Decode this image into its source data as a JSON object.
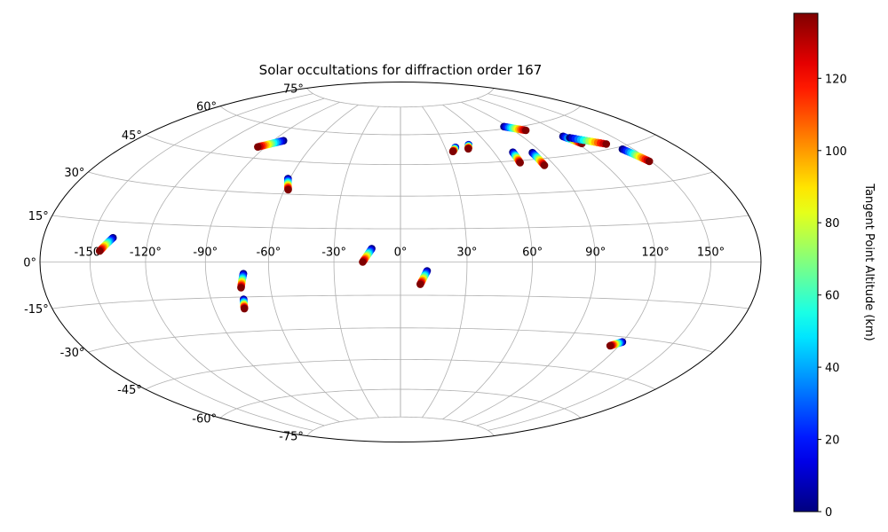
{
  "chart_data": {
    "type": "scatter",
    "projection": "hammer",
    "title": "Solar occultations for diffraction order 167",
    "grid": true,
    "lon_ticks": [
      -150,
      -120,
      -90,
      -60,
      -30,
      0,
      30,
      60,
      90,
      120,
      150
    ],
    "lon_tick_labels": [
      "-150°",
      "-120°",
      "-90°",
      "-60°",
      "-30°",
      "0°",
      "30°",
      "60°",
      "90°",
      "120°",
      "150°"
    ],
    "lat_ticks": [
      75,
      60,
      45,
      30,
      15,
      0,
      -15,
      -30,
      -45,
      -60,
      -75
    ],
    "lat_tick_labels": [
      "75°",
      "60°",
      "45°",
      "30°",
      "15°",
      "0°",
      "-15°",
      "-30°",
      "-45°",
      "-60°",
      "-75°"
    ],
    "colorbar": {
      "label": "Tangent Point Altitude (km)",
      "min": 0,
      "max": 138,
      "ticks": [
        0,
        20,
        40,
        60,
        80,
        100,
        120
      ],
      "tick_labels": [
        "0",
        "20",
        "40",
        "60",
        "80",
        "100",
        "120"
      ],
      "colormap": "jet"
    },
    "series": [
      {
        "lon_start": -139,
        "lat_start": 9,
        "lon_end": -145,
        "lat_end": 4,
        "alt_start": 0,
        "alt_end": 138
      },
      {
        "lon_start": -83,
        "lat_start": 54,
        "lon_end": -95,
        "lat_end": 50,
        "alt_start": 0,
        "alt_end": 138
      },
      {
        "lon_start": -61,
        "lat_start": 37,
        "lon_end": -58,
        "lat_end": 32,
        "alt_start": 0,
        "alt_end": 138
      },
      {
        "lon_start": -72,
        "lat_start": -5,
        "lon_end": -74,
        "lat_end": -11,
        "alt_start": 0,
        "alt_end": 138
      },
      {
        "lon_start": -74,
        "lat_start": -16,
        "lon_end": -75,
        "lat_end": -20,
        "alt_start": 0,
        "alt_end": 138
      },
      {
        "lon_start": -13,
        "lat_start": 6,
        "lon_end": -17,
        "lat_end": 0,
        "alt_start": 0,
        "alt_end": 138
      },
      {
        "lon_start": 12,
        "lat_start": -4,
        "lon_end": 9,
        "lat_end": -10,
        "alt_start": 0,
        "alt_end": 138
      },
      {
        "lon_start": 37,
        "lat_start": 53,
        "lon_end": 34,
        "lat_end": 51,
        "alt_start": 0,
        "alt_end": 138
      },
      {
        "lon_start": 47,
        "lat_start": 54,
        "lon_end": 45,
        "lat_end": 52,
        "alt_start": 0,
        "alt_end": 138
      },
      {
        "lon_start": 72,
        "lat_start": 49,
        "lon_end": 71,
        "lat_end": 44,
        "alt_start": 0,
        "alt_end": 138
      },
      {
        "lon_start": 84,
        "lat_start": 48,
        "lon_end": 84,
        "lat_end": 42,
        "alt_start": 0,
        "alt_end": 138
      },
      {
        "lon_start": 87,
        "lat_start": 61,
        "lon_end": 99,
        "lat_end": 58,
        "alt_start": 0,
        "alt_end": 138
      },
      {
        "lon_start": 118,
        "lat_start": 53,
        "lon_end": 123,
        "lat_end": 49,
        "alt_start": 0,
        "alt_end": 138
      },
      {
        "lon_start": 121,
        "lat_start": 52,
        "lon_end": 138,
        "lat_end": 47,
        "alt_start": 0,
        "alt_end": 138
      },
      {
        "lon_start": 143,
        "lat_start": 44,
        "lon_end": 149,
        "lat_end": 38,
        "alt_start": 0,
        "alt_end": 138
      },
      {
        "lon_start": 120,
        "lat_start": -32,
        "lon_end": 115,
        "lat_end": -34,
        "alt_start": 0,
        "alt_end": 138
      }
    ]
  }
}
